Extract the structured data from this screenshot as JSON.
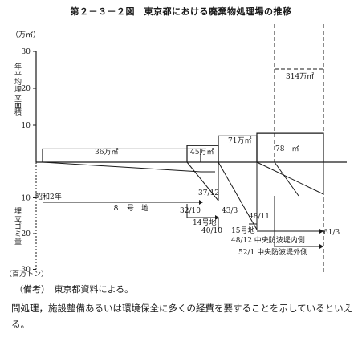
{
  "title": "第２－３－２図　東京都における廃棄物処理場の推移",
  "upper_unit": "（万㎡）",
  "upper_axis_label": "年平均埋立面積",
  "lower_axis_label": "埋立ゴミ量",
  "lower_unit": "（百万トン）",
  "note": "（備考）　東京都資料による。",
  "body_text": "問処理，施設整備あるいは環境保全に多くの経費を要することを示しているといえる。",
  "chart_data": {
    "type": "area",
    "upper_axis": {
      "ticks": [
        "30",
        "20",
        "10"
      ],
      "ylim": [
        0,
        30
      ]
    },
    "lower_axis": {
      "ticks": [
        "10",
        "20",
        "30"
      ],
      "ylim": [
        0,
        30
      ]
    },
    "sites": [
      {
        "name": "8号地",
        "area_label": "36万㎡",
        "area": 3.6,
        "start": "昭和2年",
        "end": "37/12"
      },
      {
        "name": "14号地",
        "area_label": "45万㎡",
        "area": 4.5,
        "start": "32/10",
        "end": "43/3"
      },
      {
        "name": "15号地",
        "area_label": "71万㎡",
        "area": 7.1,
        "start": "40/10",
        "end": "48/11"
      },
      {
        "name": "中央防波堤内側",
        "area_label": "78　㎡",
        "area": 7.8,
        "start": "48/12",
        "end": "61/3"
      },
      {
        "name": "中央防波堤外側",
        "area_label": "314万㎡",
        "area": 31.4,
        "start": "52/1",
        "end": ""
      }
    ],
    "labels": {
      "showa2": "昭和2年",
      "site8": "８　号　地",
      "d37_12": "37/12",
      "d32_10": "32/10",
      "d43_3": "43/3",
      "site14": "14号地",
      "d48_11": "48/11",
      "d40_10": "40/10",
      "site15": "15号地",
      "d61_3": "61/3",
      "inner": "48/12 中央防波堤内側",
      "outer": "52/1 中央防波堤外側",
      "a36": "36万㎡",
      "a45": "45万㎡",
      "a71": "71万㎡",
      "a78": "78　㎡",
      "a314": "314万㎡"
    },
    "colors": {
      "ink": "#1a1a1a",
      "paper": "#ffffff"
    }
  }
}
